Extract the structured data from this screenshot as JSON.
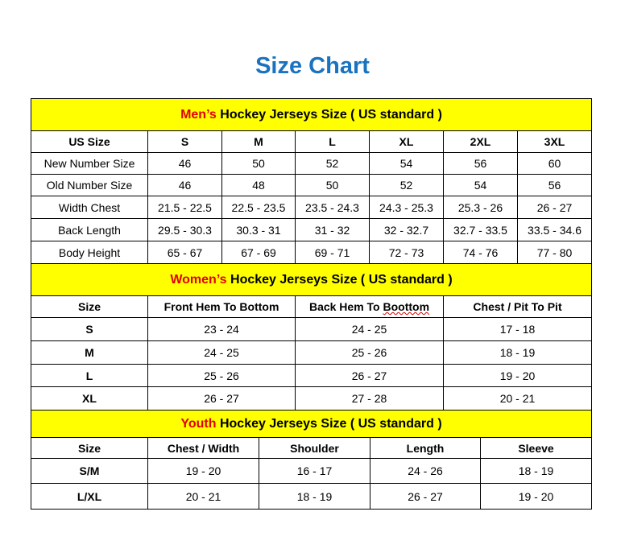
{
  "title": "Size Chart",
  "colors": {
    "title": "#1a73c0",
    "banner_bg": "#ffff00",
    "highlight": "#e00000"
  },
  "sections": [
    {
      "id": "men",
      "banner_highlight": "Men’s",
      "banner_rest": " Hockey Jerseys Size ( US standard )",
      "headers": [
        "US Size",
        "S",
        "M",
        "L",
        "XL",
        "2XL",
        "3XL"
      ],
      "rows": [
        [
          "New Number Size",
          "46",
          "50",
          "52",
          "54",
          "56",
          "60"
        ],
        [
          "Old Number Size",
          "46",
          "48",
          "50",
          "52",
          "54",
          "56"
        ],
        [
          "Width Chest",
          "21.5 - 22.5",
          "22.5 - 23.5",
          "23.5 - 24.3",
          "24.3 - 25.3",
          "25.3 - 26",
          "26 - 27"
        ],
        [
          "Back Length",
          "29.5 - 30.3",
          "30.3 - 31",
          "31 - 32",
          "32 - 32.7",
          "32.7 - 33.5",
          "33.5 - 34.6"
        ],
        [
          "Body Height",
          "65 - 67",
          "67 - 69",
          "69 - 71",
          "72 - 73",
          "74 - 76",
          "77 - 80"
        ]
      ]
    },
    {
      "id": "women",
      "banner_highlight": "Women’s",
      "banner_rest": " Hockey Jerseys Size ( US standard )",
      "headers": [
        "Size",
        "Front Hem To Bottom",
        "Back Hem To Boottom",
        "Chest / Pit To Pit"
      ],
      "rows": [
        [
          "S",
          "23 - 24",
          "24 - 25",
          "17 - 18"
        ],
        [
          "M",
          "24 - 25",
          "25 - 26",
          "18 - 19"
        ],
        [
          "L",
          "25 - 26",
          "26 - 27",
          "19 - 20"
        ],
        [
          "XL",
          "26 - 27",
          "27 - 28",
          "20 - 21"
        ]
      ]
    },
    {
      "id": "youth",
      "banner_highlight": "Youth",
      "banner_rest": " Hockey Jerseys Size ( US standard )",
      "headers": [
        "Size",
        "Chest / Width",
        "Shoulder",
        "Length",
        "Sleeve"
      ],
      "rows": [
        [
          "S/M",
          "19 - 20",
          "16 - 17",
          "24 - 26",
          "18 - 19"
        ],
        [
          "L/XL",
          "20 - 21",
          "18 - 19",
          "26 - 27",
          "19 - 20"
        ]
      ]
    }
  ]
}
